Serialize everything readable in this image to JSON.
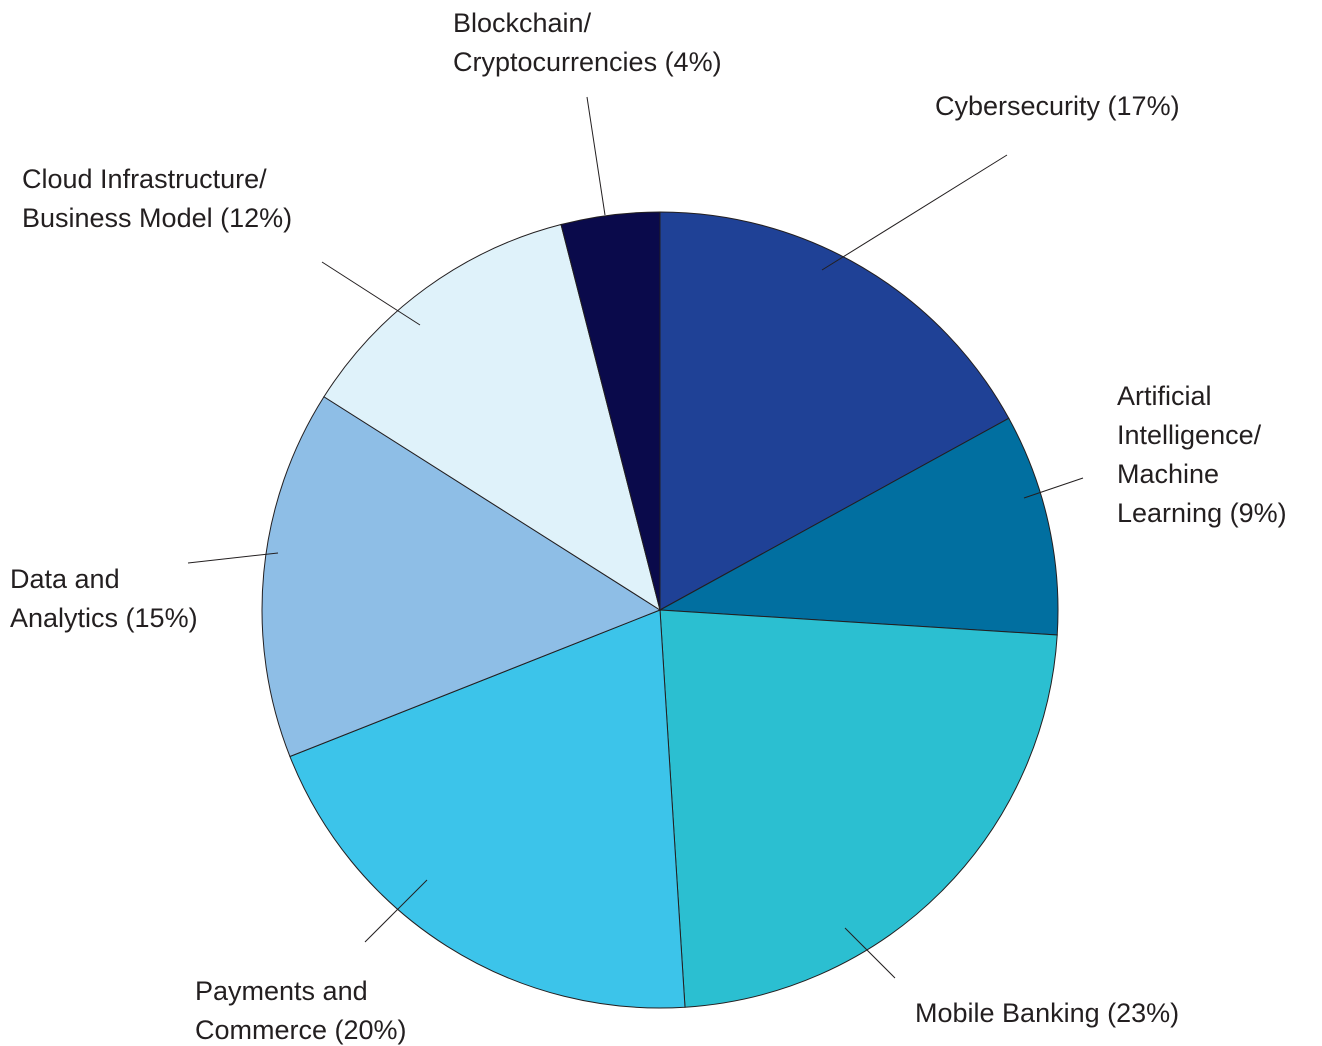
{
  "chart_data": {
    "type": "pie",
    "categories": [
      [
        "Cybersecurity (17%)"
      ],
      [
        "Artificial",
        "Intelligence/",
        "Machine",
        "Learning (9%)"
      ],
      [
        "Mobile Banking (23%)"
      ],
      [
        "Payments and",
        "Commerce (20%)"
      ],
      [
        "Data and",
        "Analytics (15%)"
      ],
      [
        "Cloud Infrastructure/",
        "Business Model (12%)"
      ],
      [
        "Blockchain/",
        "Cryptocurrencies (4%)"
      ]
    ],
    "values": [
      17,
      9,
      23,
      20,
      15,
      12,
      4
    ],
    "colors": [
      "#1f4196",
      "#016fa0",
      "#2bbfd1",
      "#3cc4ea",
      "#8ebee6",
      "#dff2fa",
      "#0a0a4b"
    ]
  }
}
